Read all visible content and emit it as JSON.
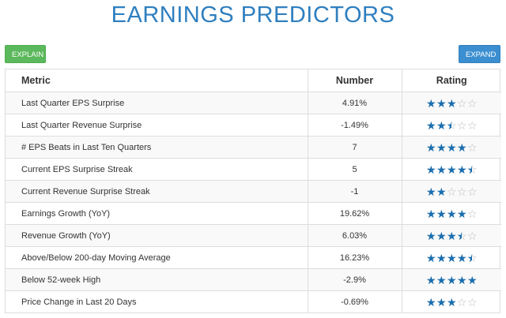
{
  "title": "EARNINGS PREDICTORS",
  "buttons": {
    "explain": "EXPLAIN",
    "expand": "EXPAND"
  },
  "colors": {
    "title": "#2f7fbf",
    "explain": "#5cb85c",
    "expand": "#3b8fd0",
    "star_filled": "#1a6fb0",
    "star_empty": "#bbbbbb"
  },
  "table": {
    "headers": {
      "metric": "Metric",
      "number": "Number",
      "rating": "Rating"
    },
    "rows": [
      {
        "metric": "Last Quarter EPS Surprise",
        "number": "4.91%",
        "rating": 3
      },
      {
        "metric": "Last Quarter Revenue Surprise",
        "number": "-1.49%",
        "rating": 2.5
      },
      {
        "metric": "# EPS Beats in Last Ten Quarters",
        "number": "7",
        "rating": 4
      },
      {
        "metric": "Current EPS Surprise Streak",
        "number": "5",
        "rating": 4.5
      },
      {
        "metric": "Current Revenue Surprise Streak",
        "number": "-1",
        "rating": 2
      },
      {
        "metric": "Earnings Growth (YoY)",
        "number": "19.62%",
        "rating": 4
      },
      {
        "metric": "Revenue Growth (YoY)",
        "number": "6.03%",
        "rating": 3.5
      },
      {
        "metric": "Above/Below 200-day Moving Average",
        "number": "16.23%",
        "rating": 4.5
      },
      {
        "metric": "Below 52-week High",
        "number": "-2.9%",
        "rating": 5
      },
      {
        "metric": "Price Change in Last 20 Days",
        "number": "-0.69%",
        "rating": 3
      }
    ]
  }
}
